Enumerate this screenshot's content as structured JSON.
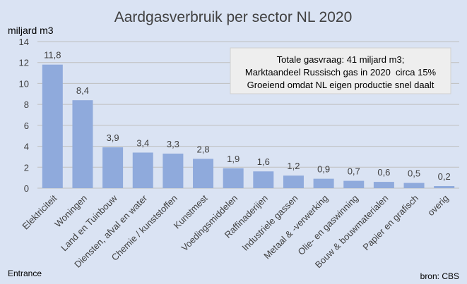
{
  "chart_data": {
    "type": "bar",
    "title": "Aardgasverbruik per sector NL 2020",
    "ylabel": "miljard m3",
    "xlabel": "",
    "ylim": [
      0,
      14
    ],
    "yticks": [
      0,
      2,
      4,
      6,
      8,
      10,
      12,
      14
    ],
    "grid": true,
    "categories": [
      "Elektriciteit",
      "Woningen",
      "Land en Tuinbouw",
      "Diensten, afval en water",
      "Chemie / kunststoffen",
      "Kunstmest",
      "Voedingsmiddelen",
      "Raffinaderijen",
      "Industriele gassen",
      "Metaal & -verwerking",
      "Olie- en gaswinning",
      "Bouw & bouwmaterialen",
      "Papier en grafisch",
      "overig"
    ],
    "values": [
      11.8,
      8.4,
      3.9,
      3.4,
      3.3,
      2.8,
      1.9,
      1.6,
      1.2,
      0.9,
      0.7,
      0.6,
      0.5,
      0.2
    ],
    "value_labels": [
      "11,8",
      "8,4",
      "3,9",
      "3,4",
      "3,3",
      "2,8",
      "1,9",
      "1,6",
      "1,2",
      "0,9",
      "0,7",
      "0,6",
      "0,5",
      "0,2"
    ],
    "annotation": [
      "Totale gasvraag: 41 miljard m3;",
      "Marktaandeel Russisch gas in 2020  circa 15%",
      "Groeiend omdat NL eigen productie snel daalt"
    ],
    "footer_left": "Entrance",
    "footer_right": "bron: CBS"
  },
  "colors": {
    "background": "#dae3f3",
    "bar": "#8faadc",
    "grid": "#bfbfbf",
    "text": "#404040",
    "note_bg": "#eeeeee"
  }
}
